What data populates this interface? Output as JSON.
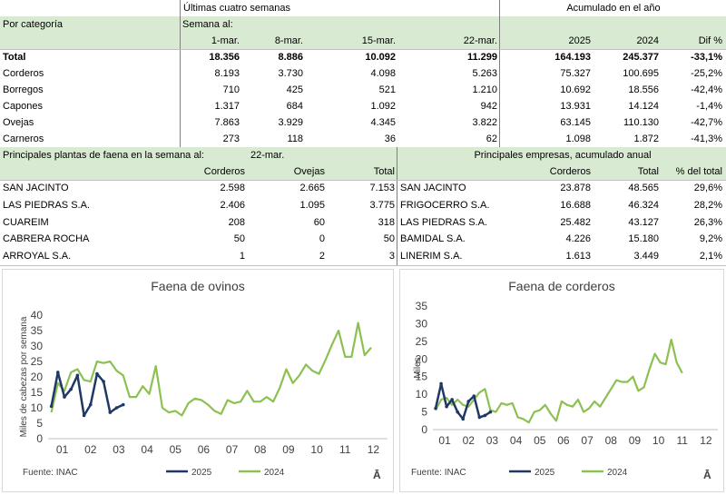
{
  "top": {
    "header_weeks": "Últimas cuatro semanas",
    "header_year": "Acumulado en el año",
    "por_categoria": "Por categoría",
    "semana_al": "Semana al:",
    "cols": [
      "1-mar.",
      "8-mar.",
      "15-mar.",
      "22-mar."
    ],
    "year_cols": [
      "2025",
      "2024",
      "Dif %"
    ],
    "rows": [
      {
        "label": "Total",
        "v": [
          "18.356",
          "8.886",
          "10.092",
          "11.299"
        ],
        "y": [
          "164.193",
          "245.377",
          "-33,1%"
        ]
      },
      {
        "label": "Corderos",
        "v": [
          "8.193",
          "3.730",
          "4.098",
          "5.263"
        ],
        "y": [
          "75.327",
          "100.695",
          "-25,2%"
        ]
      },
      {
        "label": "Borregos",
        "v": [
          "710",
          "425",
          "521",
          "1.210"
        ],
        "y": [
          "10.692",
          "18.556",
          "-42,4%"
        ]
      },
      {
        "label": "Capones",
        "v": [
          "1.317",
          "684",
          "1.092",
          "942"
        ],
        "y": [
          "13.931",
          "14.124",
          "-1,4%"
        ]
      },
      {
        "label": "Ovejas",
        "v": [
          "7.863",
          "3.929",
          "4.345",
          "3.822"
        ],
        "y": [
          "63.145",
          "110.130",
          "-42,7%"
        ]
      },
      {
        "label": "Carneros",
        "v": [
          "273",
          "118",
          "36",
          "62"
        ],
        "y": [
          "1.098",
          "1.872",
          "-41,3%"
        ]
      }
    ]
  },
  "plants": {
    "title": "Principales plantas de faena en la semana al:",
    "date": "22-mar.",
    "cols": [
      "Corderos",
      "Ovejas",
      "Total"
    ],
    "rows": [
      {
        "name": "SAN JACINTO",
        "v": [
          "2.598",
          "2.665",
          "7.153"
        ]
      },
      {
        "name": "LAS PIEDRAS S.A.",
        "v": [
          "2.406",
          "1.095",
          "3.775"
        ]
      },
      {
        "name": "CUAREIM",
        "v": [
          "208",
          "60",
          "318"
        ]
      },
      {
        "name": "CABRERA ROCHA",
        "v": [
          "50",
          "0",
          "50"
        ]
      },
      {
        "name": "ARROYAL S.A.",
        "v": [
          "1",
          "2",
          "3"
        ]
      }
    ]
  },
  "companies": {
    "title": "Principales empresas, acumulado anual",
    "cols": [
      "Corderos",
      "Total",
      "% del total"
    ],
    "rows": [
      {
        "name": "SAN JACINTO",
        "v": [
          "23.878",
          "48.565",
          "29,6%"
        ]
      },
      {
        "name": "FRIGOCERRO S.A.",
        "v": [
          "16.688",
          "46.324",
          "28,2%"
        ]
      },
      {
        "name": "LAS PIEDRAS S.A.",
        "v": [
          "25.482",
          "43.127",
          "26,3%"
        ]
      },
      {
        "name": "BAMIDAL S.A.",
        "v": [
          "4.226",
          "15.180",
          "9,2%"
        ]
      },
      {
        "name": "LINERIM S.A.",
        "v": [
          "1.613",
          "3.449",
          "2,1%"
        ]
      }
    ]
  },
  "chart_data": [
    {
      "type": "line",
      "title": "Faena de ovinos",
      "ylabel": "Miles de cabezas por semana",
      "ylim": [
        0,
        40
      ],
      "yticks": [
        "0",
        "5",
        "10",
        "15",
        "20",
        "25",
        "30",
        "35",
        "40"
      ],
      "xticks": [
        "01",
        "02",
        "03",
        "04",
        "05",
        "06",
        "07",
        "08",
        "09",
        "10",
        "11",
        "12"
      ],
      "source": "Fuente:  INAC",
      "logo": "Ā",
      "series": [
        {
          "name": "2025",
          "color": "#1f3864",
          "values": [
            10.5,
            21.5,
            13.5,
            16,
            20.5,
            7.5,
            11,
            21,
            18.5,
            8.5,
            10,
            11
          ]
        },
        {
          "name": "2024",
          "color": "#8cc152",
          "values": [
            8.5,
            18,
            15.5,
            21.5,
            22.5,
            19,
            18.5,
            25,
            24.5,
            25,
            22,
            20.5,
            13.5,
            13.5,
            17,
            14.5,
            23.5,
            10,
            8.5,
            9,
            7.5,
            11.5,
            13,
            12.5,
            11,
            9,
            8,
            12.5,
            11.5,
            12,
            15.5,
            12,
            12,
            13.5,
            12,
            16.5,
            22.5,
            18,
            20.5,
            24,
            22,
            21,
            25.5,
            30.5,
            35,
            26.5,
            26.5,
            37.5,
            27,
            29.5
          ]
        }
      ]
    },
    {
      "type": "line",
      "title": "Faena de corderos",
      "ylabel": "Miles",
      "ylim": [
        0,
        35
      ],
      "yticks": [
        "0",
        "5",
        "10",
        "15",
        "20",
        "25",
        "30",
        "35"
      ],
      "xticks": [
        "01",
        "02",
        "03",
        "04",
        "05",
        "06",
        "07",
        "08",
        "09",
        "10",
        "11",
        "12"
      ],
      "source": "Fuente:  INAC",
      "logo": "Ā",
      "series": [
        {
          "name": "2025",
          "color": "#1f3864",
          "values": [
            6,
            13,
            6.5,
            8.5,
            5,
            3,
            8,
            9.5,
            3.5,
            4,
            5
          ]
        },
        {
          "name": "2024",
          "color": "#8cc152",
          "values": [
            5.5,
            8.5,
            9,
            7,
            8.5,
            7,
            6.5,
            8.5,
            10.5,
            11.5,
            5.5,
            5,
            7.5,
            7,
            7.5,
            3.5,
            3,
            2,
            5,
            5.5,
            7,
            4.5,
            2.5,
            8,
            7,
            6.5,
            8.5,
            5,
            6,
            8,
            6.5,
            9,
            11.5,
            14,
            13.5,
            13.5,
            15,
            11,
            12,
            17,
            21.5,
            19,
            18.5,
            25.5,
            19,
            16
          ]
        }
      ]
    }
  ]
}
